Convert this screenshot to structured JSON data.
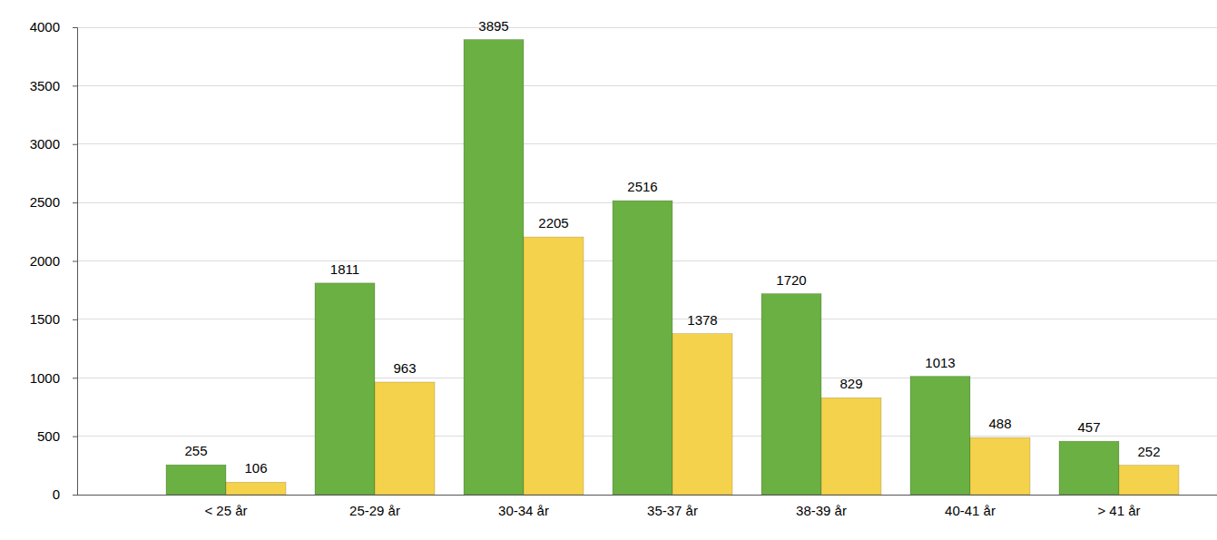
{
  "chart_data": {
    "type": "bar",
    "categories": [
      "< 25 år",
      "25-29 år",
      "30-34 år",
      "35-37 år",
      "38-39 år",
      "40-41 år",
      "> 41 år"
    ],
    "series": [
      {
        "color": "#6ab042",
        "values": [
          255,
          1811,
          3895,
          2516,
          1720,
          1013,
          457
        ]
      },
      {
        "color": "#f5d24b",
        "values": [
          106,
          963,
          2205,
          1378,
          829,
          488,
          252
        ]
      }
    ],
    "ylim": [
      0,
      4000
    ],
    "yticks": [
      0,
      500,
      1000,
      1500,
      2000,
      2500,
      3000,
      3500,
      4000
    ],
    "grid": true,
    "data_labels": true
  }
}
